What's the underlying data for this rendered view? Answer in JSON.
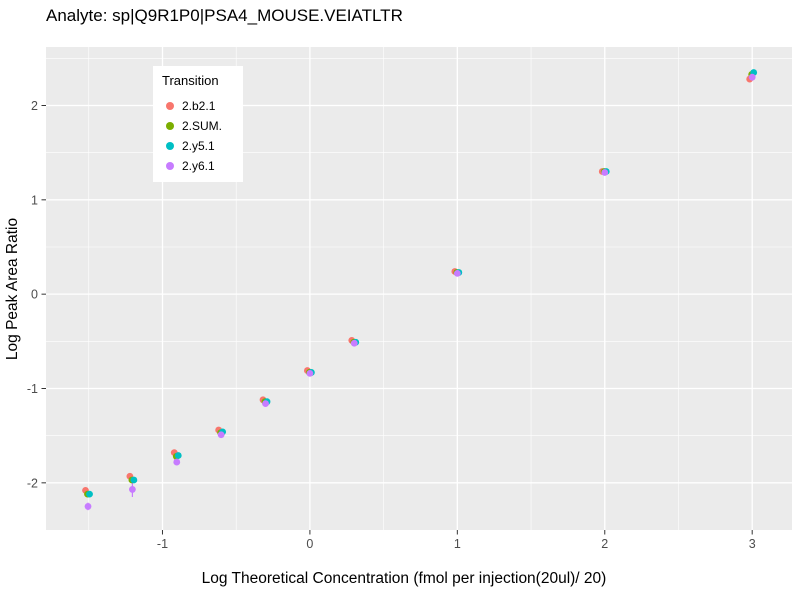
{
  "chart": {
    "title": "Analyte: sp|Q9R1P0|PSA4_MOUSE.VEIATLTR",
    "xlabel": "Log Theoretical Concentration (fmol per injection(20ul)/ 20)",
    "ylabel": "Log Peak Area Ratio"
  },
  "chart_data": {
    "type": "scatter",
    "title": "Analyte: sp|Q9R1P0|PSA4_MOUSE.VEIATLTR",
    "xlabel": "Log Theoretical Concentration (fmol per injection(20ul)/ 20)",
    "ylabel": "Log Peak Area Ratio",
    "legend_title": "Transition",
    "legend_position": "inside-top-left",
    "panel_bg": "#EBEBEB",
    "grid_color": "#FFFFFF",
    "tick_label_color": "#4D4D4D",
    "xlim": [
      -1.79,
      3.27
    ],
    "ylim": [
      -2.5,
      2.62
    ],
    "x_ticks": [
      -1,
      0,
      1,
      2,
      3
    ],
    "y_ticks": [
      -2,
      -1,
      0,
      1,
      2
    ],
    "x": [
      -1.505,
      -1.204,
      -0.903,
      -0.602,
      -0.301,
      0,
      0.301,
      1,
      2,
      3
    ],
    "series": [
      {
        "name": "2.b2.1",
        "color": "#F8766D",
        "y": [
          -2.08,
          -1.93,
          -1.68,
          -1.44,
          -1.12,
          -0.81,
          -0.49,
          0.24,
          1.3,
          2.28
        ]
      },
      {
        "name": "2.SUM.",
        "color": "#7CAE00",
        "y": [
          -2.12,
          -1.97,
          -1.72,
          -1.47,
          -1.14,
          -0.83,
          -0.51,
          0.23,
          1.3,
          2.33
        ]
      },
      {
        "name": "2.y5.1",
        "color": "#00BFC4",
        "y": [
          -2.12,
          -1.97,
          -1.71,
          -1.46,
          -1.14,
          -0.83,
          -0.51,
          0.23,
          1.3,
          2.35
        ]
      },
      {
        "name": "2.y6.1",
        "color": "#C77CFF",
        "y": [
          -2.25,
          -2.07,
          -1.78,
          -1.49,
          -1.16,
          -0.84,
          -0.52,
          0.22,
          1.29,
          2.3
        ]
      }
    ],
    "error_bars": [
      {
        "series_index": 3,
        "x": -1.204,
        "y": -2.07,
        "half": 0.08
      },
      {
        "series_index": 3,
        "x": -1.505,
        "y": -2.25,
        "half": 0.04
      }
    ]
  }
}
